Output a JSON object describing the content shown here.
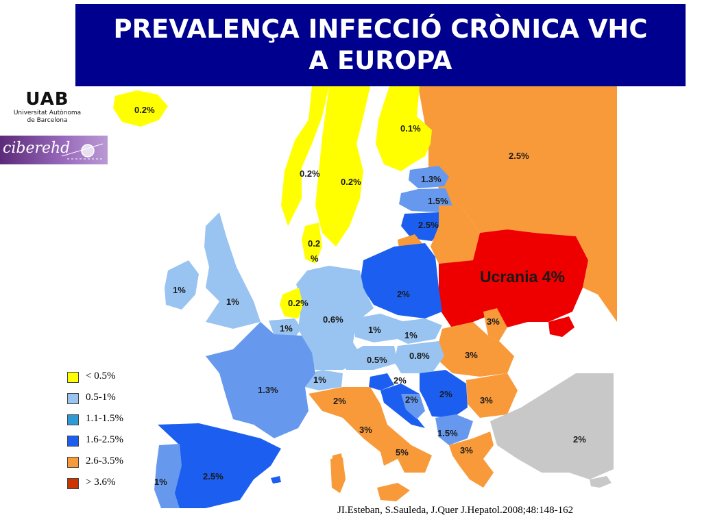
{
  "title": "PREVALENÇA INFECCIÓ CRÒNICA VHC A EUROPA",
  "logos": {
    "uab_mark": "UAB",
    "uab_name_line1": "Universitat Autònoma",
    "uab_name_line2": "de Barcelona",
    "ciber_text": "ciberehd"
  },
  "colors": {
    "yellow": "#ffff00",
    "light_blue": "#99c3f0",
    "mid_blue": "#6699ee",
    "blue": "#1c5ff0",
    "orange": "#f89a3a",
    "red": "#ee0000",
    "grey": "#c8c8c8"
  },
  "legend": [
    {
      "label": "< 0.5%",
      "color": "#ffff00"
    },
    {
      "label": "0.5-1%",
      "color": "#99c3f0"
    },
    {
      "label": "1.1-1.5%",
      "color": "#2e9ad6"
    },
    {
      "label": "1.6-2.5%",
      "color": "#1c5ff0"
    },
    {
      "label": "2.6-3.5%",
      "color": "#f89a3a"
    },
    {
      "label": "> 3.6%",
      "color": "#cc3300"
    }
  ],
  "map_labels": {
    "iceland": "0.2%",
    "finland": "0.1%",
    "russia": "2.5%",
    "norway": "0.2%",
    "sweden": "0.2%",
    "estonia": "1.3%",
    "latvia": "1.5%",
    "lithuania": "2.5%",
    "denmark_line1": "0.2",
    "denmark_line2": "%",
    "ukraine": "Ucrania 4%",
    "ireland": "1%",
    "uk": "1%",
    "netherlands": "0.2%",
    "poland": "2%",
    "belgium": "1%",
    "germany": "0.6%",
    "czech": "1%",
    "slovakia": "1%",
    "moldova": "3%",
    "austria": "0.5%",
    "hungary": "0.8%",
    "romania": "3%",
    "france": "1.3%",
    "switzerland": "1%",
    "slovenia": "2%",
    "croatia": "2%",
    "serbia": "2%",
    "bulgaria": "3%",
    "italy_north": "2%",
    "italy_center": "3%",
    "macedonia": "1.5%",
    "italy_south": "5%",
    "greece": "3%",
    "turkey": "2%",
    "portugal": "1%",
    "spain": "2.5%"
  },
  "citation": "JI.Esteban, S.Sauleda, J.Quer J.Hepatol.2008;48:148-162"
}
